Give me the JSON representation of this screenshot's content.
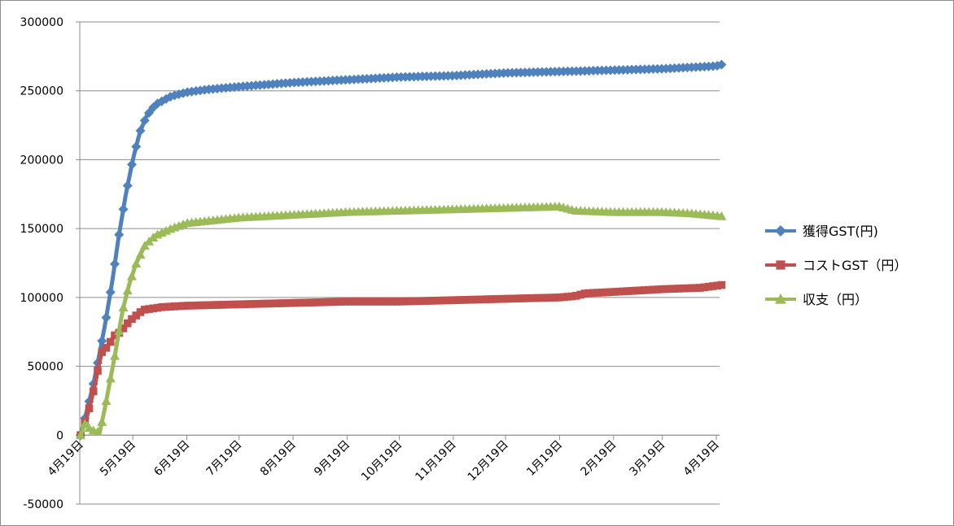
{
  "chart_data": {
    "type": "line",
    "title": "",
    "xlabel": "",
    "ylabel": "",
    "ylim": [
      -50000,
      300000
    ],
    "y_ticks": [
      300000,
      250000,
      200000,
      150000,
      100000,
      50000,
      0,
      -50000
    ],
    "grid": "horizontal",
    "legend_position": "right",
    "x_tick_labels": [
      "4月19日",
      "5月19日",
      "6月19日",
      "7月19日",
      "8月19日",
      "9月19日",
      "10月19日",
      "11月19日",
      "12月19日",
      "1月19日",
      "2月19日",
      "3月19日",
      "4月19日"
    ],
    "x_tick_dates": [
      "2022-04-19",
      "2022-05-19",
      "2022-06-19",
      "2022-07-19",
      "2022-08-19",
      "2022-09-19",
      "2022-10-19",
      "2022-11-19",
      "2022-12-19",
      "2023-01-19",
      "2023-02-19",
      "2023-03-19",
      "2023-04-19"
    ],
    "series": [
      {
        "name": "獲得GST(円)",
        "color": "#4f81bd",
        "marker": "diamond",
        "points": [
          [
            "2022-04-19",
            0
          ],
          [
            "2022-04-22",
            15000
          ],
          [
            "2022-04-26",
            35000
          ],
          [
            "2022-04-30",
            60000
          ],
          [
            "2022-05-03",
            80000
          ],
          [
            "2022-05-07",
            110000
          ],
          [
            "2022-05-11",
            145000
          ],
          [
            "2022-05-15",
            175000
          ],
          [
            "2022-05-19",
            200000
          ],
          [
            "2022-05-23",
            220000
          ],
          [
            "2022-05-27",
            232000
          ],
          [
            "2022-06-01",
            240000
          ],
          [
            "2022-06-10",
            246000
          ],
          [
            "2022-06-19",
            249000
          ],
          [
            "2022-07-01",
            251000
          ],
          [
            "2022-07-19",
            253000
          ],
          [
            "2022-08-19",
            256000
          ],
          [
            "2022-09-19",
            258000
          ],
          [
            "2022-10-19",
            260000
          ],
          [
            "2022-11-19",
            261000
          ],
          [
            "2022-12-19",
            263000
          ],
          [
            "2023-01-19",
            264000
          ],
          [
            "2023-02-19",
            265000
          ],
          [
            "2023-03-19",
            266000
          ],
          [
            "2023-04-19",
            268000
          ],
          [
            "2023-04-22",
            269000
          ]
        ]
      },
      {
        "name": "コストGST（円）",
        "color": "#c0504d",
        "marker": "square",
        "points": [
          [
            "2022-04-19",
            0
          ],
          [
            "2022-04-23",
            15000
          ],
          [
            "2022-04-27",
            35000
          ],
          [
            "2022-04-29",
            48000
          ],
          [
            "2022-05-01",
            60000
          ],
          [
            "2022-05-05",
            65000
          ],
          [
            "2022-05-08",
            72000
          ],
          [
            "2022-05-12",
            75000
          ],
          [
            "2022-05-15",
            80000
          ],
          [
            "2022-05-19",
            85000
          ],
          [
            "2022-05-25",
            91000
          ],
          [
            "2022-06-05",
            93000
          ],
          [
            "2022-06-19",
            94000
          ],
          [
            "2022-07-19",
            95000
          ],
          [
            "2022-08-19",
            96000
          ],
          [
            "2022-09-19",
            97000
          ],
          [
            "2022-10-19",
            97000
          ],
          [
            "2022-11-19",
            98000
          ],
          [
            "2022-12-19",
            99000
          ],
          [
            "2023-01-19",
            100000
          ],
          [
            "2023-01-28",
            101000
          ],
          [
            "2023-02-03",
            103000
          ],
          [
            "2023-02-19",
            104000
          ],
          [
            "2023-03-19",
            106000
          ],
          [
            "2023-04-10",
            107000
          ],
          [
            "2023-04-22",
            109000
          ]
        ]
      },
      {
        "name": "収支（円）",
        "color": "#9bbb59",
        "marker": "triangle",
        "points": [
          [
            "2022-04-19",
            0
          ],
          [
            "2022-04-22",
            10000
          ],
          [
            "2022-04-24",
            5000
          ],
          [
            "2022-04-27",
            3000
          ],
          [
            "2022-04-30",
            2000
          ],
          [
            "2022-05-03",
            20000
          ],
          [
            "2022-05-06",
            40000
          ],
          [
            "2022-05-09",
            60000
          ],
          [
            "2022-05-13",
            90000
          ],
          [
            "2022-05-17",
            110000
          ],
          [
            "2022-05-21",
            125000
          ],
          [
            "2022-05-26",
            138000
          ],
          [
            "2022-06-01",
            145000
          ],
          [
            "2022-06-10",
            150000
          ],
          [
            "2022-06-19",
            154000
          ],
          [
            "2022-07-19",
            158000
          ],
          [
            "2022-08-19",
            160000
          ],
          [
            "2022-09-19",
            162000
          ],
          [
            "2022-10-19",
            163000
          ],
          [
            "2022-11-19",
            164000
          ],
          [
            "2022-12-19",
            165000
          ],
          [
            "2023-01-19",
            166000
          ],
          [
            "2023-01-28",
            163000
          ],
          [
            "2023-02-19",
            162000
          ],
          [
            "2023-03-19",
            162000
          ],
          [
            "2023-04-05",
            161000
          ],
          [
            "2023-04-22",
            159000
          ]
        ]
      }
    ]
  }
}
